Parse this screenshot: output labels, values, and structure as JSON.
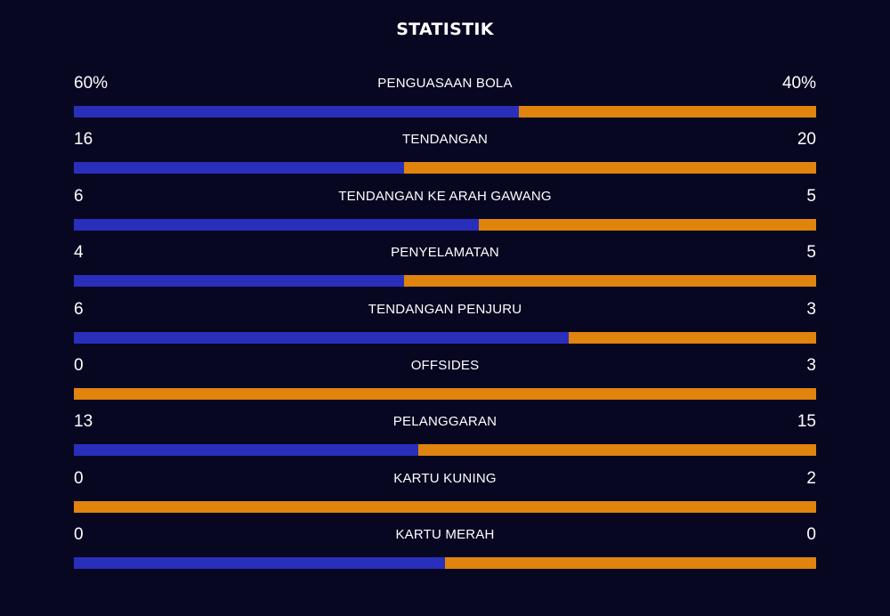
{
  "title": "STATISTIK",
  "colors": {
    "background": "#080722",
    "home_bar": "#2a2fbb",
    "away_bar": "#e0840e",
    "text": "#ffffff"
  },
  "stats": [
    {
      "label": "PENGUASAAN BOLA",
      "home": "60%",
      "away": "40%",
      "home_value": 60,
      "away_value": 40
    },
    {
      "label": "TENDANGAN",
      "home": "16",
      "away": "20",
      "home_value": 16,
      "away_value": 20
    },
    {
      "label": "TENDANGAN KE ARAH GAWANG",
      "home": "6",
      "away": "5",
      "home_value": 6,
      "away_value": 5
    },
    {
      "label": "PENYELAMATAN",
      "home": "4",
      "away": "5",
      "home_value": 4,
      "away_value": 5
    },
    {
      "label": "TENDANGAN PENJURU",
      "home": "6",
      "away": "3",
      "home_value": 6,
      "away_value": 3
    },
    {
      "label": "OFFSIDES",
      "home": "0",
      "away": "3",
      "home_value": 0,
      "away_value": 3
    },
    {
      "label": "PELANGGARAN",
      "home": "13",
      "away": "15",
      "home_value": 13,
      "away_value": 15
    },
    {
      "label": "KARTU KUNING",
      "home": "0",
      "away": "2",
      "home_value": 0,
      "away_value": 2
    },
    {
      "label": "KARTU MERAH",
      "home": "0",
      "away": "0",
      "home_value": 0,
      "away_value": 0
    }
  ]
}
